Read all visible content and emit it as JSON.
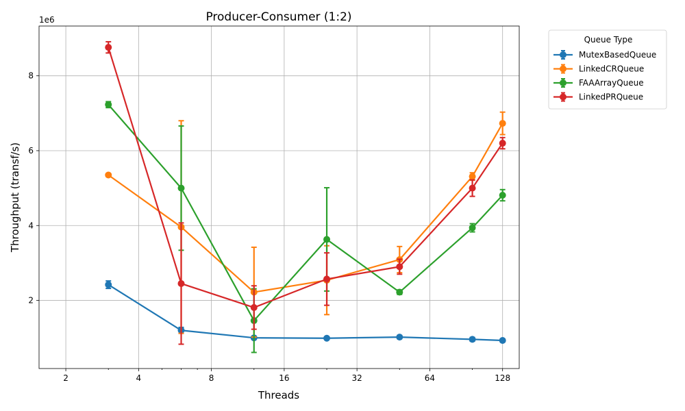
{
  "chart_data": {
    "type": "line",
    "title": "Producer-Consumer (1:2)",
    "xlabel": "Threads",
    "ylabel": "Throughput (transf/s)",
    "y_offset_label": "1e6",
    "x_scale": "log2",
    "xlim": [
      1.55,
      150
    ],
    "ylim": [
      180000,
      9330000
    ],
    "x_ticks": [
      2,
      4,
      8,
      16,
      32,
      64,
      128
    ],
    "x_tick_labels": [
      "2",
      "4",
      "8",
      "16",
      "32",
      "64",
      "128"
    ],
    "y_ticks": [
      2000000,
      4000000,
      6000000,
      8000000
    ],
    "y_tick_labels": [
      "2",
      "4",
      "6",
      "8"
    ],
    "grid": true,
    "error_bars": true,
    "legend": {
      "title": "Queue Type",
      "placement": "outside-top-right"
    },
    "x": [
      3,
      6,
      12,
      24,
      48,
      96,
      128
    ],
    "series": [
      {
        "name": "MutexBasedQueue",
        "color": "#1f77b4",
        "values": [
          2420000,
          1200000,
          1000000,
          990000,
          1020000,
          960000,
          930000
        ],
        "errors": [
          100000,
          80000,
          40000,
          30000,
          40000,
          50000,
          40000
        ]
      },
      {
        "name": "LinkedCRQueue",
        "color": "#ff7f0e",
        "values": [
          5350000,
          3960000,
          2220000,
          2540000,
          3090000,
          5310000,
          6730000
        ],
        "errors": [
          40000,
          2840000,
          1200000,
          920000,
          350000,
          100000,
          300000
        ]
      },
      {
        "name": "FAAArrayQueue",
        "color": "#2ca02c",
        "values": [
          7230000,
          5000000,
          1460000,
          3630000,
          2220000,
          3940000,
          4810000
        ],
        "errors": [
          80000,
          1660000,
          850000,
          1380000,
          60000,
          110000,
          150000
        ]
      },
      {
        "name": "LinkedPRQueue",
        "color": "#d62728",
        "values": [
          8760000,
          2450000,
          1810000,
          2570000,
          2900000,
          5000000,
          6200000
        ],
        "errors": [
          150000,
          1620000,
          580000,
          700000,
          200000,
          220000,
          150000
        ]
      }
    ]
  }
}
